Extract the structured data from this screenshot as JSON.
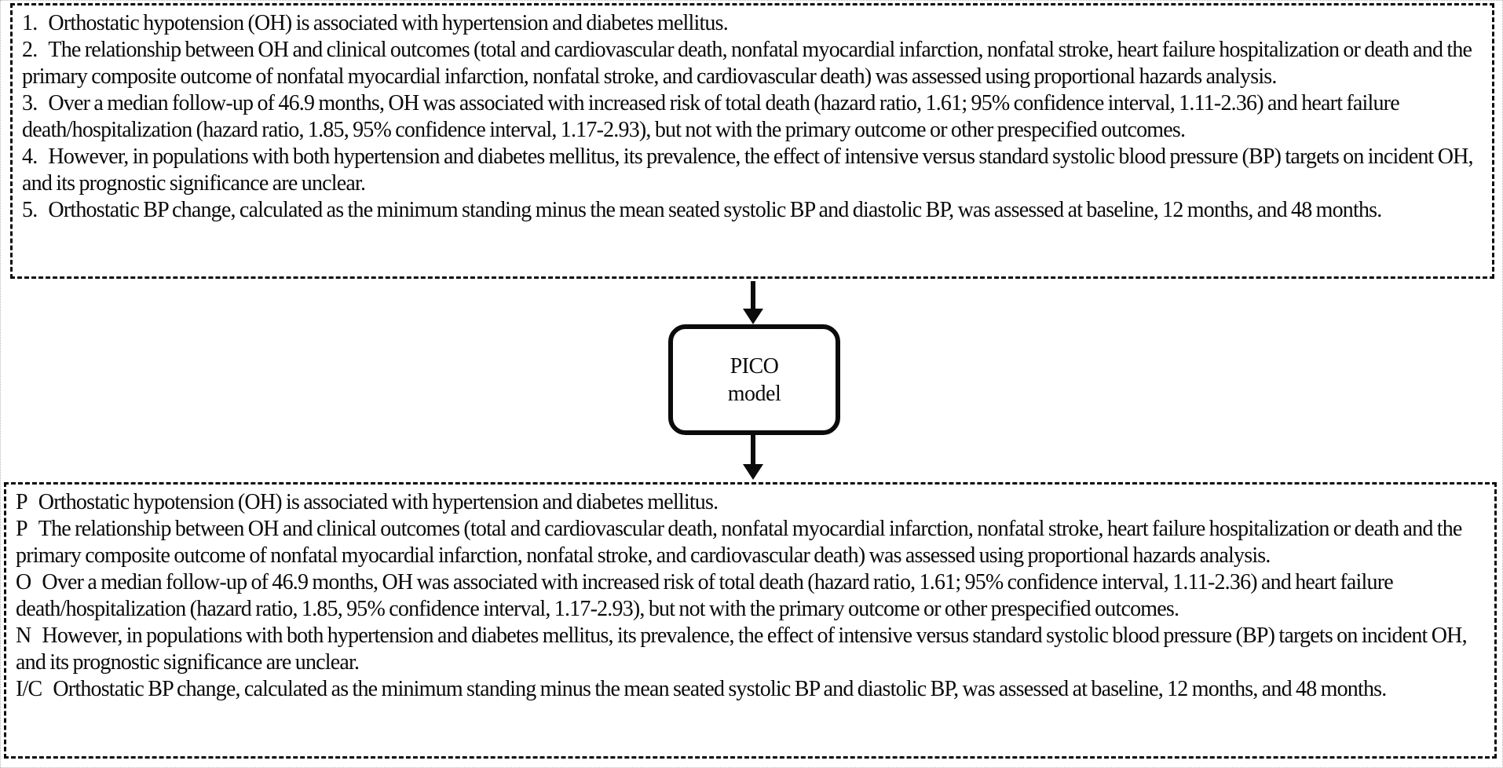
{
  "colors": {
    "background": "#ffffff",
    "line": "#0b0b0b",
    "text": "#0a0a0a"
  },
  "top_box": {
    "items": [
      {
        "label": "1.",
        "text": "Orthostatic hypotension (OH) is associated with hypertension and diabetes mellitus."
      },
      {
        "label": "2.",
        "text": "The relationship between OH and clinical outcomes (total and cardiovascular death, nonfatal myocardial infarction, nonfatal stroke, heart failure hospitalization or death and the primary composite outcome of nonfatal myocardial infarction, nonfatal stroke, and cardiovascular death) was assessed using proportional hazards analysis."
      },
      {
        "label": "3.",
        "text": "Over a median follow-up of 46.9 months, OH was associated with increased risk of total death (hazard ratio, 1.61; 95% confidence interval, 1.11-2.36) and heart failure death/hospitalization (hazard ratio, 1.85, 95% confidence interval, 1.17-2.93), but not with the primary outcome or other prespecified outcomes."
      },
      {
        "label": "4.",
        "text": "However, in populations with both hypertension and diabetes mellitus, its prevalence, the effect of intensive versus standard systolic blood pressure (BP) targets on incident OH, and its prognostic significance are unclear."
      },
      {
        "label": "5.",
        "text": "Orthostatic BP change, calculated as the minimum standing minus the mean seated systolic BP and diastolic BP, was assessed at baseline, 12 months, and 48 months."
      }
    ]
  },
  "center_node": {
    "line1": "PICO",
    "line2": "model"
  },
  "bottom_box": {
    "items": [
      {
        "label": "P",
        "text": "Orthostatic hypotension (OH) is associated with hypertension and diabetes mellitus."
      },
      {
        "label": "P",
        "text": "The relationship between OH and clinical outcomes (total and cardiovascular death, nonfatal myocardial infarction, nonfatal stroke, heart failure hospitalization or death and the primary composite outcome of nonfatal myocardial infarction, nonfatal stroke, and cardiovascular death) was assessed using proportional hazards analysis."
      },
      {
        "label": "O",
        "text": "Over a median follow-up of 46.9 months, OH was associated with increased risk of total death (hazard ratio, 1.61; 95% confidence interval, 1.11-2.36) and heart failure death/hospitalization (hazard ratio, 1.85, 95% confidence interval, 1.17-2.93), but not with the primary outcome or other prespecified outcomes."
      },
      {
        "label": "N",
        "text": "However, in populations with both hypertension and diabetes mellitus, its prevalence, the effect of intensive versus standard systolic blood pressure (BP) targets on incident OH, and its prognostic significance are unclear."
      },
      {
        "label": "I/C",
        "text": "Orthostatic BP change, calculated as the minimum standing minus the mean seated systolic BP and diastolic BP, was assessed at baseline, 12 months, and 48 months."
      }
    ]
  }
}
